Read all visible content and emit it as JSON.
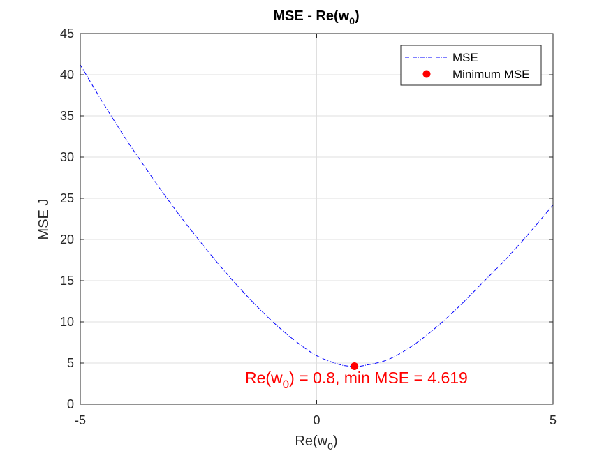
{
  "chart_data": {
    "type": "line",
    "title": {
      "main": "MSE - Re(w",
      "sub": "0",
      "tail": ")"
    },
    "xlabel": {
      "main": "Re(w",
      "sub": "0",
      "tail": ")"
    },
    "ylabel": "MSE J",
    "xlim": [
      -5,
      5
    ],
    "ylim": [
      0,
      45
    ],
    "xticks": [
      -5,
      0,
      5
    ],
    "yticks": [
      0,
      5,
      10,
      15,
      20,
      25,
      30,
      35,
      40,
      45
    ],
    "grid": true,
    "legend_position": "top-right",
    "series": [
      {
        "name": "MSE",
        "style": "dash-dot",
        "color": "#0000ff",
        "x": [
          -5,
          -4.5,
          -4,
          -3.5,
          -3,
          -2.5,
          -2,
          -1.5,
          -1,
          -0.5,
          0,
          0.5,
          0.8,
          1,
          1.5,
          2,
          2.5,
          3,
          3.5,
          4,
          4.5,
          5
        ],
        "y": [
          41.2,
          36.4,
          31.9,
          27.7,
          23.7,
          20.0,
          16.5,
          13.3,
          10.4,
          7.9,
          5.9,
          4.8,
          4.619,
          4.7,
          5.4,
          7.0,
          9.2,
          11.8,
          14.7,
          17.6,
          20.8,
          24.2
        ]
      }
    ],
    "minimum": {
      "name": "Minimum MSE",
      "x": 0.8,
      "y": 4.619,
      "color": "#ff0000",
      "annotation": {
        "pre": "Re(w",
        "sub": "0",
        "post": ") = 0.8, min MSE = 4.619"
      }
    }
  }
}
